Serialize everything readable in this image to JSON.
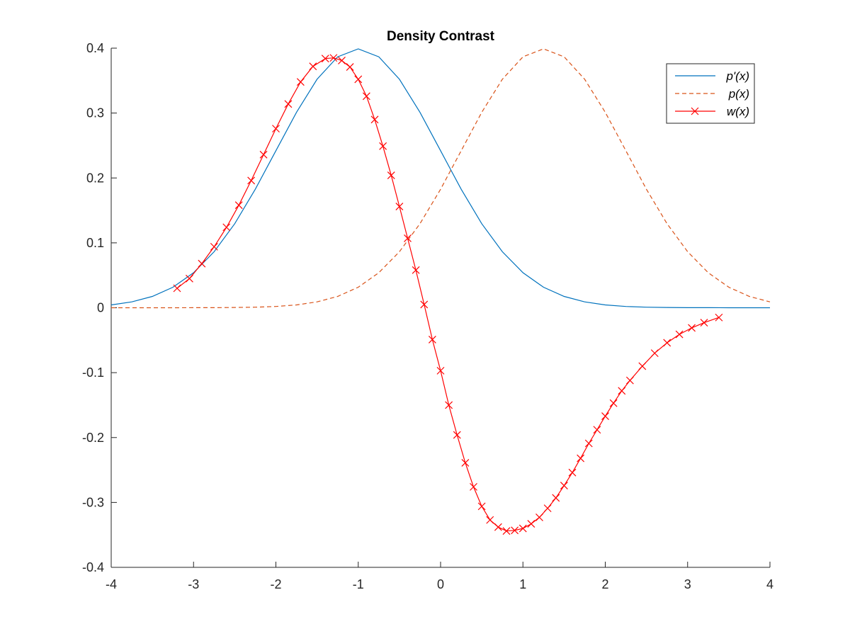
{
  "chart_data": {
    "type": "line",
    "title": "Density Contrast",
    "xlabel": "",
    "ylabel": "",
    "xlim": [
      -4,
      4
    ],
    "ylim": [
      -0.4,
      0.4
    ],
    "x_ticks": [
      -4,
      -3,
      -2,
      -1,
      0,
      1,
      2,
      3,
      4
    ],
    "x_tick_labels": [
      "-4",
      "-3",
      "-2",
      "-1",
      "0",
      "1",
      "2",
      "3",
      "4"
    ],
    "y_ticks": [
      -0.4,
      -0.3,
      -0.2,
      -0.1,
      0,
      0.1,
      0.2,
      0.3,
      0.4
    ],
    "y_tick_labels": [
      "-0.4",
      "-0.3",
      "-0.2",
      "-0.1",
      "0",
      "0.1",
      "0.2",
      "0.3",
      "0.4"
    ],
    "grid": false,
    "legend_position": "top-right",
    "series": [
      {
        "name": "p'(x)",
        "style": "solid",
        "color": "#0072BD",
        "x": [
          -4,
          -3.75,
          -3.5,
          -3.25,
          -3,
          -2.75,
          -2.5,
          -2.25,
          -2,
          -1.75,
          -1.5,
          -1.25,
          -1,
          -0.75,
          -0.5,
          -0.25,
          0,
          0.25,
          0.5,
          0.75,
          1,
          1.25,
          1.5,
          1.75,
          2,
          2.25,
          2.5,
          2.75,
          3,
          3.25,
          3.5,
          3.75,
          4
        ],
        "y": [
          0.0044,
          0.0091,
          0.0175,
          0.0317,
          0.054,
          0.0863,
          0.1295,
          0.1826,
          0.242,
          0.3011,
          0.3521,
          0.3867,
          0.3989,
          0.3867,
          0.3521,
          0.3011,
          0.242,
          0.1826,
          0.1295,
          0.0863,
          0.054,
          0.0317,
          0.0175,
          0.0091,
          0.0044,
          0.002,
          0.0009,
          0.0004,
          0.0001,
          0.0001,
          0.0,
          0.0,
          0.0
        ]
      },
      {
        "name": "p(x)",
        "style": "dashed",
        "color": "#D95319",
        "x": [
          -4,
          -3.75,
          -3.5,
          -3.25,
          -3,
          -2.75,
          -2.5,
          -2.25,
          -2,
          -1.75,
          -1.5,
          -1.25,
          -1,
          -0.75,
          -0.5,
          -0.25,
          0,
          0.25,
          0.5,
          0.75,
          1,
          1.25,
          1.5,
          1.75,
          2,
          2.25,
          2.5,
          2.75,
          3,
          3.25,
          3.5,
          3.75,
          4
        ],
        "y": [
          0.0,
          0.0,
          0.0,
          0.0,
          0.0001,
          0.0001,
          0.0004,
          0.0009,
          0.002,
          0.0044,
          0.0091,
          0.0175,
          0.0317,
          0.054,
          0.0863,
          0.1295,
          0.1826,
          0.242,
          0.3011,
          0.3521,
          0.3867,
          0.3989,
          0.3867,
          0.3521,
          0.3011,
          0.242,
          0.1826,
          0.1295,
          0.0863,
          0.054,
          0.0317,
          0.0175,
          0.0091
        ]
      },
      {
        "name": "w(x)",
        "style": "solid-x-markers",
        "color": "#FF0000",
        "x": [
          -3.2,
          -3.05,
          -2.9,
          -2.75,
          -2.6,
          -2.45,
          -2.3,
          -2.15,
          -2.0,
          -1.85,
          -1.7,
          -1.55,
          -1.4,
          -1.3,
          -1.2,
          -1.1,
          -1.0,
          -0.9,
          -0.8,
          -0.7,
          -0.6,
          -0.5,
          -0.4,
          -0.3,
          -0.2,
          -0.1,
          0.0,
          0.1,
          0.2,
          0.3,
          0.4,
          0.5,
          0.6,
          0.7,
          0.8,
          0.9,
          1.0,
          1.1,
          1.2,
          1.3,
          1.4,
          1.5,
          1.6,
          1.7,
          1.8,
          1.9,
          2.0,
          2.1,
          2.2,
          2.3,
          2.45,
          2.6,
          2.75,
          2.9,
          3.05,
          3.2,
          3.38
        ],
        "y": [
          0.03,
          0.045,
          0.068,
          0.094,
          0.124,
          0.158,
          0.196,
          0.236,
          0.276,
          0.314,
          0.348,
          0.372,
          0.384,
          0.385,
          0.381,
          0.371,
          0.352,
          0.326,
          0.29,
          0.249,
          0.204,
          0.156,
          0.107,
          0.058,
          0.005,
          -0.049,
          -0.097,
          -0.15,
          -0.196,
          -0.239,
          -0.276,
          -0.306,
          -0.327,
          -0.338,
          -0.344,
          -0.343,
          -0.34,
          -0.333,
          -0.323,
          -0.309,
          -0.293,
          -0.274,
          -0.254,
          -0.232,
          -0.209,
          -0.188,
          -0.167,
          -0.147,
          -0.128,
          -0.112,
          -0.09,
          -0.07,
          -0.054,
          -0.041,
          -0.031,
          -0.023,
          -0.015
        ]
      }
    ]
  }
}
